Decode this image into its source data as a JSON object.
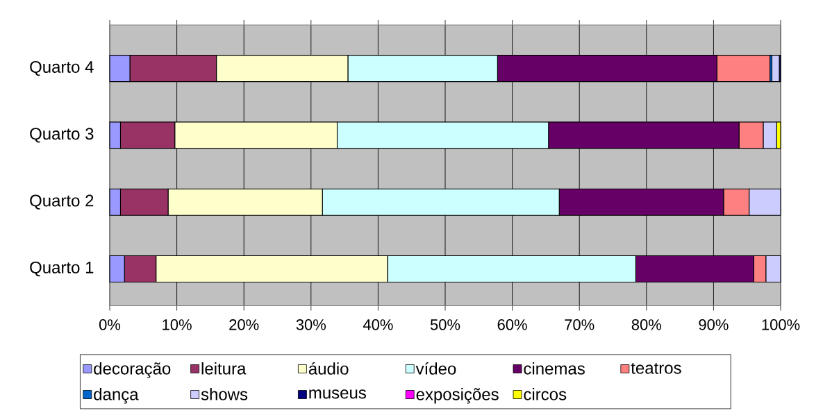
{
  "chart_data": {
    "type": "bar",
    "orientation": "horizontal",
    "stacked": true,
    "categories": [
      "Quarto 4",
      "Quarto 3",
      "Quarto 2",
      "Quarto 1"
    ],
    "series": [
      {
        "name": "decoração",
        "color": "#9999ff",
        "values": [
          3.0,
          1.6,
          1.6,
          2.2
        ]
      },
      {
        "name": "leitura",
        "color": "#993366",
        "values": [
          12.9,
          8.1,
          7.1,
          4.7
        ]
      },
      {
        "name": "áudio",
        "color": "#ffffcc",
        "values": [
          19.6,
          24.2,
          23.0,
          34.5
        ]
      },
      {
        "name": "vídeo",
        "color": "#ccffff",
        "values": [
          22.3,
          31.5,
          35.3,
          37.0
        ]
      },
      {
        "name": "cinemas",
        "color": "#660066",
        "values": [
          32.7,
          28.4,
          24.5,
          17.6
        ]
      },
      {
        "name": "teatros",
        "color": "#ff8080",
        "values": [
          7.9,
          3.6,
          3.8,
          1.8
        ]
      },
      {
        "name": "dança",
        "color": "#0066cc",
        "values": [
          0.3,
          0,
          0,
          0
        ]
      },
      {
        "name": "shows",
        "color": "#ccccff",
        "values": [
          1.1,
          2.0,
          4.7,
          2.2
        ]
      },
      {
        "name": "museus",
        "color": "#000080",
        "values": [
          0.2,
          0,
          0,
          0
        ]
      },
      {
        "name": "exposições",
        "color": "#ff00ff",
        "values": [
          0,
          0,
          0,
          0
        ]
      },
      {
        "name": "circos",
        "color": "#ffff00",
        "values": [
          0,
          0.6,
          0,
          0
        ]
      }
    ],
    "xlim": [
      0,
      100
    ],
    "xticks": [
      {
        "value": 0,
        "label": "0%"
      },
      {
        "value": 10,
        "label": "10%"
      },
      {
        "value": 20,
        "label": "20%"
      },
      {
        "value": 30,
        "label": "30%"
      },
      {
        "value": 40,
        "label": "40%"
      },
      {
        "value": 50,
        "label": "50%"
      },
      {
        "value": 60,
        "label": "60%"
      },
      {
        "value": 70,
        "label": "70%"
      },
      {
        "value": 80,
        "label": "80%"
      },
      {
        "value": 90,
        "label": "90%"
      },
      {
        "value": 100,
        "label": "100%"
      }
    ],
    "grid": "x",
    "legend": "bottom"
  }
}
